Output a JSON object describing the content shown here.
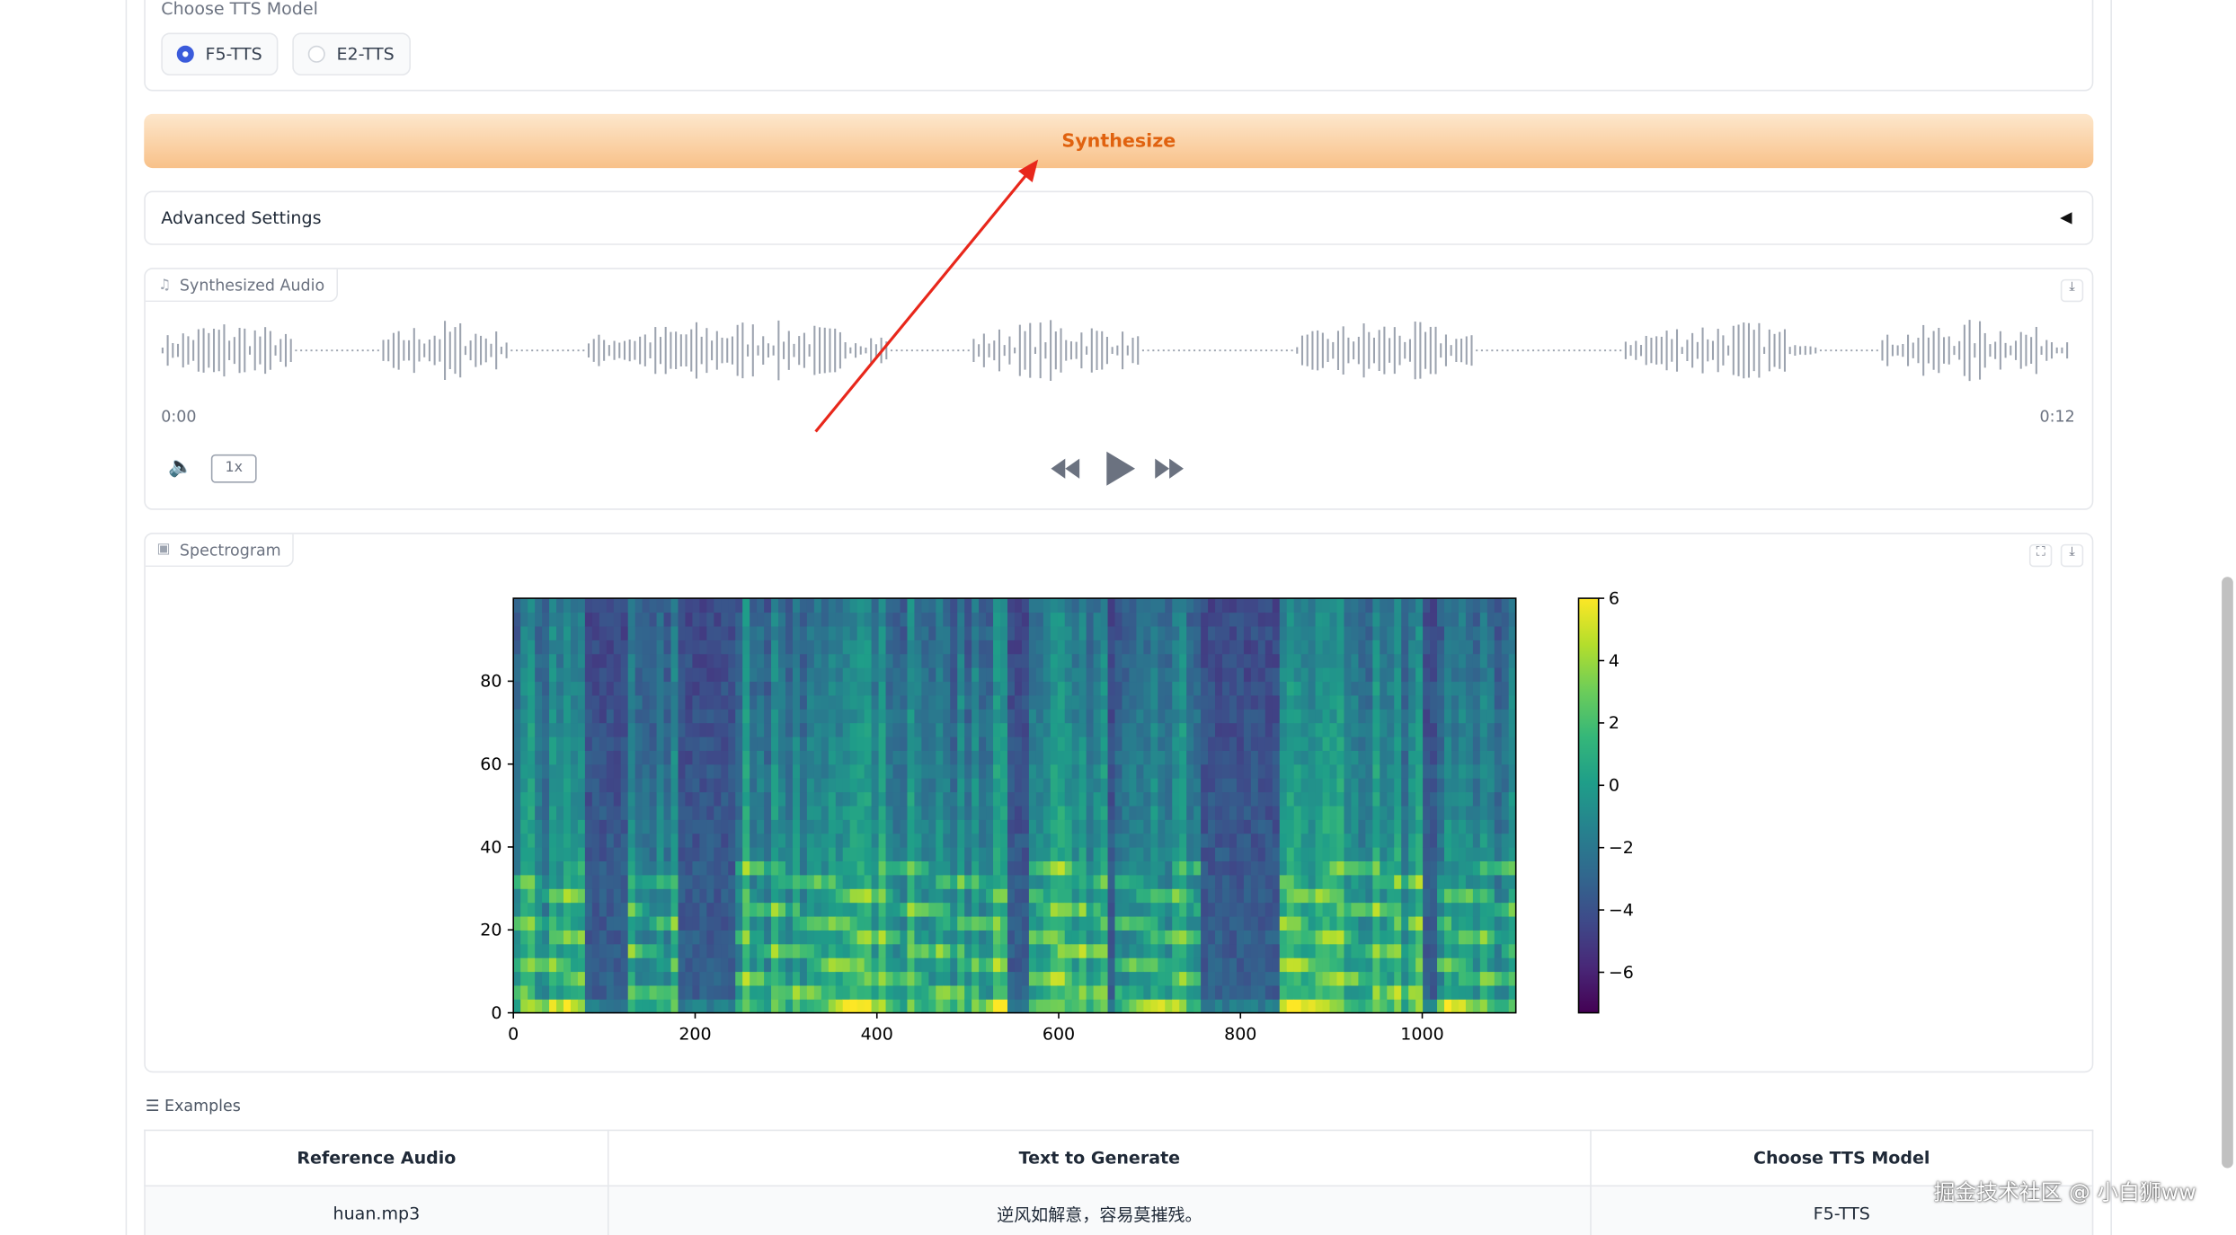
{
  "model_choice": {
    "label": "Choose TTS Model",
    "options": [
      "F5-TTS",
      "E2-TTS"
    ]
  },
  "synthesize_button": "Synthesize",
  "advanced_settings": "Advanced Settings",
  "audio": {
    "label": "Synthesized Audio",
    "start_time": "0:00",
    "end_time": "0:12",
    "speed": "1x"
  },
  "spectrogram_label": "Spectrogram",
  "chart_data": {
    "type": "heatmap",
    "colormap": "viridis",
    "xlim": [
      0,
      1103
    ],
    "xticks": [
      0,
      200,
      400,
      600,
      800,
      1000
    ],
    "ylim": [
      0,
      100
    ],
    "yticks": [
      0,
      20,
      40,
      60,
      80
    ],
    "clim": [
      -7.3,
      6
    ],
    "cticks": [
      6,
      4,
      2,
      0,
      {
        "value": -2,
        "label": "−2"
      },
      {
        "value": -4,
        "label": "−4"
      },
      {
        "value": -6,
        "label": "−6"
      }
    ]
  },
  "examples": {
    "label": "Examples",
    "headers": [
      "Reference Audio",
      "Text to Generate",
      "Choose TTS Model"
    ],
    "rows": [
      [
        "huan.mp3",
        "逆风如解意，容易莫摧残。",
        "F5-TTS"
      ]
    ]
  },
  "watermark": "掘金技术社区 @ 小白狮ww"
}
